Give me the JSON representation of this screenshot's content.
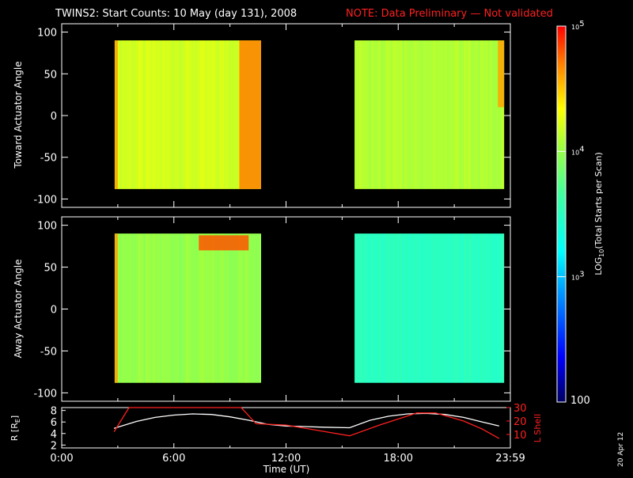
{
  "title": {
    "main": "TWINS2: Start Counts: 10 May (day 131), 2008",
    "note": "NOTE: Data Preliminary — Not validated"
  },
  "side_date": "20 Apr 12",
  "colors": {
    "background": "#000000",
    "axes": "#ffffff",
    "note": "#ff2020",
    "lshell": "#ff2020",
    "radius": "#ffffff"
  },
  "chart_data": [
    {
      "type": "heatmap",
      "panel": "toward",
      "ylabel": "Toward Actuator Angle",
      "xlim_hours": [
        0,
        24
      ],
      "ylim": [
        -110,
        110
      ],
      "yticks": [
        -100,
        -50,
        0,
        50,
        100
      ],
      "data_blocks": [
        {
          "t_start": "02:50",
          "t_end": "10:40",
          "angle_range": [
            -88,
            90
          ],
          "log_level": 4.2,
          "features": [
            {
              "t": "02:50-03:00",
              "angles": [
                -88,
                90
              ],
              "log_level": 4.6
            },
            {
              "t": "09:30-10:40",
              "angles": [
                -88,
                90
              ],
              "log_level": 4.7
            }
          ]
        },
        {
          "t_start": "15:40",
          "t_end": "23:40",
          "angle_range": [
            -88,
            90
          ],
          "log_level": 4.1,
          "features": [
            {
              "t": "23:20-23:40",
              "angles": [
                10,
                90
              ],
              "log_level": 4.6
            }
          ]
        }
      ]
    },
    {
      "type": "heatmap",
      "panel": "away",
      "ylabel": "Away Actuator Angle",
      "xlim_hours": [
        0,
        24
      ],
      "ylim": [
        -110,
        110
      ],
      "yticks": [
        -100,
        -50,
        0,
        50,
        100
      ],
      "data_blocks": [
        {
          "t_start": "02:50",
          "t_end": "10:40",
          "angle_range": [
            -88,
            90
          ],
          "log_level": 4.0,
          "features": [
            {
              "t": "02:50-03:00",
              "angles": [
                -88,
                90
              ],
              "log_level": 4.6
            },
            {
              "t": "07:20-10:00",
              "angles": [
                70,
                88
              ],
              "log_level": 4.8
            }
          ]
        },
        {
          "t_start": "15:40",
          "t_end": "23:40",
          "angle_range": [
            -88,
            90
          ],
          "log_level": 3.5
        }
      ]
    },
    {
      "type": "line",
      "panel": "orbit",
      "xlabel": "Time (UT)",
      "xticks": [
        "0:00",
        "6:00",
        "12:00",
        "18:00",
        "23:59"
      ],
      "y_left": {
        "label": "R [R",
        "label_sub": "E",
        "label_end": "]",
        "ticks": [
          "2",
          "4",
          "6",
          "8"
        ],
        "lim": [
          1.5,
          8.5
        ]
      },
      "y_right": {
        "label": "L Shell",
        "ticks": [
          "10",
          "20",
          "30"
        ],
        "lim": [
          0,
          30
        ]
      },
      "series": [
        {
          "axis": "left",
          "color": "#ffffff",
          "x": [
            2.8,
            4.0,
            5.0,
            6.0,
            7.0,
            8.0,
            9.0,
            10.0,
            11.0,
            12.0,
            13.0,
            14.0,
            15.4,
            16.5,
            17.5,
            18.5,
            19.5,
            20.5,
            21.5,
            22.5,
            23.4
          ],
          "y": [
            4.9,
            6.1,
            6.8,
            7.2,
            7.4,
            7.3,
            6.9,
            6.3,
            5.6,
            5.3,
            5.2,
            5.1,
            5.0,
            6.3,
            7.0,
            7.4,
            7.5,
            7.3,
            6.8,
            6.0,
            5.3
          ]
        },
        {
          "axis": "right",
          "color": "#ff2020",
          "x": [
            2.8,
            3.6,
            9.6,
            10.4,
            12.0,
            15.4,
            17.0,
            19.0,
            20.0,
            21.5,
            22.5,
            23.4
          ],
          "y": [
            12,
            30,
            30,
            18,
            17,
            9,
            17,
            26,
            26,
            20,
            14,
            7
          ]
        }
      ]
    }
  ],
  "colorbar": {
    "label_log": "LOG",
    "label_sub": "10",
    "label_rest": "(Total Starts per Scan)",
    "range_log": [
      2,
      5
    ],
    "ticks": [
      {
        "log": 5,
        "base": "10",
        "exp": "5"
      },
      {
        "log": 4,
        "base": "10",
        "exp": "4"
      },
      {
        "log": 3,
        "base": "10",
        "exp": "3"
      }
    ],
    "bottom_label": "100"
  }
}
